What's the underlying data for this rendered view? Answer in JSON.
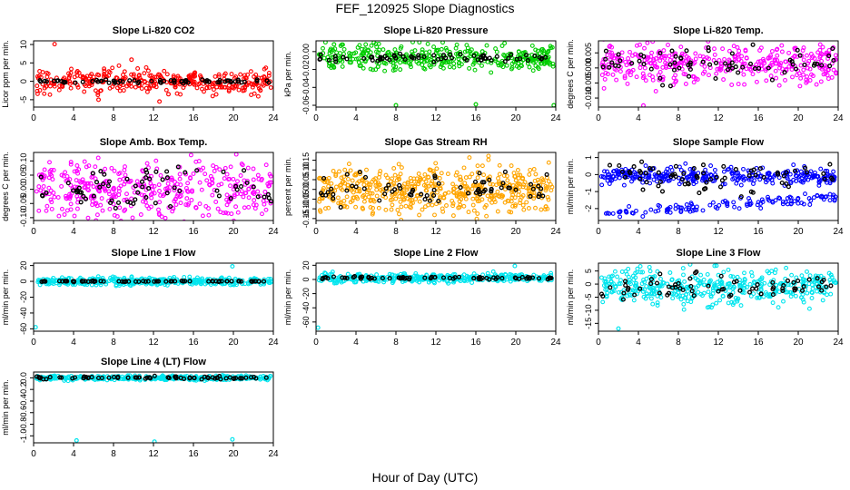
{
  "page": {
    "title": "FEF_120925  Slope Diagnostics",
    "xlabel": "Hour of Day (UTC)"
  },
  "chart_data": [
    {
      "type": "scatter",
      "title": "Slope Li-820 CO2",
      "ylabel": "Licor ppm per min.",
      "xlim": [
        0,
        24
      ],
      "xticks": [
        0,
        4,
        8,
        12,
        16,
        20,
        24
      ],
      "ylim": [
        -7,
        11
      ],
      "yticks": [
        -5,
        0,
        5,
        10
      ],
      "color": "#ff0000",
      "center": 0,
      "spread": 1.6,
      "black_spread": 0.25,
      "n": 340,
      "outliers": [
        [
          2.1,
          10.1
        ],
        [
          9.8,
          5.9
        ],
        [
          12.6,
          -5.5
        ],
        [
          6.5,
          -5.0
        ],
        [
          13.5,
          -3.5
        ]
      ],
      "lower_band": null
    },
    {
      "type": "scatter",
      "title": "Slope Li-820 Pressure",
      "ylabel": "kPa per min.",
      "xlim": [
        0,
        24
      ],
      "xticks": [
        0,
        4,
        8,
        12,
        16,
        20,
        24
      ],
      "ylim": [
        -0.062,
        0.012
      ],
      "yticks": [
        -0.06,
        -0.04,
        -0.02,
        0.0
      ],
      "color": "#00cc00",
      "center": -0.007,
      "spread": 0.007,
      "black_spread": 0.002,
      "n": 380,
      "outliers": [
        [
          8,
          -0.06
        ],
        [
          16,
          -0.059
        ],
        [
          23.8,
          -0.06
        ],
        [
          1.8,
          0.008
        ]
      ],
      "lower_band": null
    },
    {
      "type": "scatter",
      "title": "Slope Li-820 Temp.",
      "ylabel": "degrees C per min.",
      "xlim": [
        0,
        24
      ],
      "xticks": [
        0,
        4,
        8,
        12,
        16,
        20,
        24
      ],
      "ylim": [
        -0.013,
        0.009
      ],
      "yticks": [
        -0.01,
        -0.005,
        0.0,
        0.005
      ],
      "color": "#ff00ff",
      "center": 0.0015,
      "spread": 0.0035,
      "black_spread": 0.003,
      "n": 380,
      "outliers": [
        [
          4.5,
          -0.0125
        ]
      ],
      "lower_band": null
    },
    {
      "type": "scatter",
      "title": "Slope Amb. Box Temp.",
      "ylabel": "degrees C per min.",
      "xlim": [
        0,
        24
      ],
      "xticks": [
        0,
        4,
        8,
        12,
        16,
        20,
        24
      ],
      "ylim": [
        -0.11,
        0.13
      ],
      "yticks": [
        -0.1,
        -0.05,
        0.0,
        0.05,
        0.1
      ],
      "color": "#ff00ff",
      "center": 0.0,
      "spread": 0.05,
      "black_spread": 0.04,
      "n": 400,
      "outliers": [],
      "lower_band": null
    },
    {
      "type": "scatter",
      "title": "Slope Gas Stream RH",
      "ylabel": "percent per min.",
      "xlim": [
        0,
        24
      ],
      "xticks": [
        0,
        4,
        8,
        12,
        16,
        20,
        24
      ],
      "ylim": [
        -0.16,
        0.19
      ],
      "yticks": [
        -0.15,
        -0.1,
        -0.05,
        0.0,
        0.05,
        0.1,
        0.15
      ],
      "color": "#ffa500",
      "center": 0.0,
      "spread": 0.06,
      "black_spread": 0.04,
      "n": 520,
      "outliers": [],
      "lower_band": null
    },
    {
      "type": "scatter",
      "title": "Slope Sample Flow",
      "ylabel": "ml/min per min.",
      "xlim": [
        0,
        24
      ],
      "xticks": [
        0,
        4,
        8,
        12,
        16,
        20,
        24
      ],
      "ylim": [
        -2.7,
        1.3
      ],
      "yticks": [
        -2,
        -1,
        0,
        1
      ],
      "color": "#0000ff",
      "center": -0.1,
      "spread": 0.25,
      "black_spread": 0.45,
      "n": 300,
      "outliers": [],
      "lower_band": {
        "start": -2.3,
        "end": -1.3,
        "spread": 0.15,
        "n": 120
      }
    },
    {
      "type": "scatter",
      "title": "Slope Line 1 Flow",
      "ylabel": "ml/min per min.",
      "xlim": [
        0,
        24
      ],
      "xticks": [
        0,
        4,
        8,
        12,
        16,
        20,
        24
      ],
      "ylim": [
        -63,
        23
      ],
      "yticks": [
        -60,
        -40,
        -20,
        0,
        20
      ],
      "color": "#00e5ee",
      "center": 0,
      "spread": 2.5,
      "black_spread": 0.3,
      "n": 380,
      "outliers": [
        [
          0.2,
          -58
        ],
        [
          19.9,
          19
        ]
      ],
      "lower_band": null
    },
    {
      "type": "scatter",
      "title": "Slope Line 2 Flow",
      "ylabel": "ml/min per min.",
      "xlim": [
        0,
        24
      ],
      "xticks": [
        0,
        4,
        8,
        12,
        16,
        20,
        24
      ],
      "ylim": [
        -73,
        23
      ],
      "yticks": [
        -60,
        -40,
        -20,
        0,
        20
      ],
      "color": "#00e5ee",
      "center": 2,
      "spread": 3,
      "black_spread": 1,
      "n": 380,
      "outliers": [
        [
          0.2,
          -68
        ],
        [
          19.9,
          19
        ]
      ],
      "lower_band": null
    },
    {
      "type": "scatter",
      "title": "Slope Line 3 Flow",
      "ylabel": "ml/min per min.",
      "xlim": [
        0,
        24
      ],
      "xticks": [
        0,
        4,
        8,
        12,
        16,
        20,
        24
      ],
      "ylim": [
        -18,
        8
      ],
      "yticks": [
        -15,
        -10,
        -5,
        0,
        5
      ],
      "color": "#00e5ee",
      "center": -1,
      "spread": 3.5,
      "black_spread": 2,
      "n": 420,
      "outliers": [
        [
          2,
          -17
        ]
      ],
      "lower_band": null
    },
    {
      "type": "scatter",
      "title": "Slope Line 4 (LT) Flow",
      "ylabel": "ml/min per min.",
      "xlim": [
        0,
        24
      ],
      "xticks": [
        0,
        4,
        8,
        12,
        16,
        20,
        24
      ],
      "ylim": [
        -1.12,
        0.1
      ],
      "yticks": [
        -1.0,
        -0.8,
        -0.6,
        -0.4,
        -0.2,
        0.0
      ],
      "color": "#00e5ee",
      "center": 0,
      "spread": 0.02,
      "black_spread": 0.012,
      "n": 380,
      "outliers": [
        [
          4.3,
          -1.08
        ],
        [
          12.1,
          -1.1
        ],
        [
          19.9,
          -1.06
        ]
      ],
      "lower_band": null
    }
  ]
}
